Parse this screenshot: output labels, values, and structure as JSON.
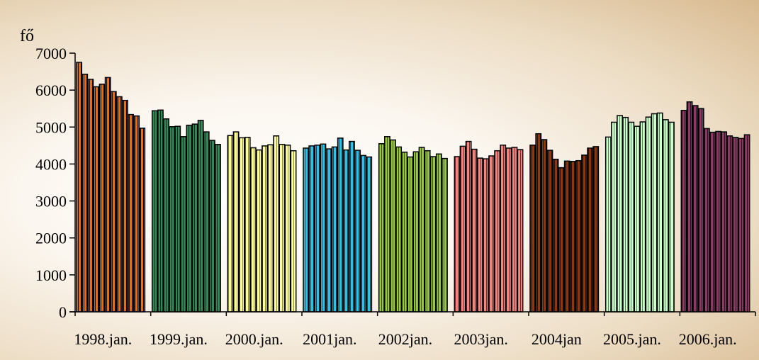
{
  "chart_data": {
    "type": "bar",
    "ylabel": "fő",
    "ylim": [
      0,
      7000
    ],
    "yticks": [
      0,
      1000,
      2000,
      3000,
      4000,
      5000,
      6000,
      7000
    ],
    "grid": false,
    "legend": "none",
    "year_labels": [
      "1998.jan.",
      "1999.jan.",
      "2000.jan.",
      "2001jan.",
      "2002jan.",
      "2003jan.",
      "2004jan",
      "2005.jan.",
      "2006.jan."
    ],
    "groups": [
      {
        "label": "1998.jan.",
        "color": "#ff6600",
        "stripe": "#1a0a00",
        "values": [
          6750,
          6430,
          6290,
          6090,
          6160,
          6340,
          5960,
          5820,
          5720,
          5340,
          5300,
          4970
        ]
      },
      {
        "label": "1999.jan.",
        "color": "#2e8b57",
        "stripe": "#0d2e1c",
        "values": [
          5440,
          5460,
          5220,
          5010,
          5020,
          4740,
          5050,
          5080,
          5180,
          4870,
          4640,
          4530
        ]
      },
      {
        "label": "2000.jan.",
        "color": "#ffff99",
        "stripe": "#8a8a3a",
        "values": [
          4770,
          4870,
          4710,
          4720,
          4440,
          4380,
          4490,
          4520,
          4760,
          4530,
          4510,
          4360
        ]
      },
      {
        "label": "2001jan.",
        "color": "#1ec8ef",
        "stripe": "#0a4a5a",
        "values": [
          4430,
          4490,
          4510,
          4540,
          4410,
          4460,
          4700,
          4380,
          4610,
          4370,
          4230,
          4190
        ]
      },
      {
        "label": "2002jan.",
        "color": "#99cc33",
        "stripe": "#3a5010",
        "values": [
          4550,
          4740,
          4650,
          4460,
          4320,
          4190,
          4330,
          4450,
          4360,
          4200,
          4270,
          4150
        ]
      },
      {
        "label": "2003jan.",
        "color": "#ff8080",
        "stripe": "#7a2a2a",
        "values": [
          4200,
          4480,
          4610,
          4400,
          4160,
          4140,
          4220,
          4360,
          4510,
          4430,
          4450,
          4390
        ]
      },
      {
        "label": "2004jan",
        "color": "#993300",
        "stripe": "#2a0e00",
        "values": [
          4510,
          4820,
          4660,
          4370,
          4130,
          3900,
          4080,
          4070,
          4090,
          4240,
          4430,
          4470
        ]
      },
      {
        "label": "2005.jan.",
        "color": "#ccffcc",
        "stripe": "#5a7a5a",
        "values": [
          4730,
          5130,
          5310,
          5260,
          5130,
          5020,
          5140,
          5270,
          5360,
          5380,
          5200,
          5130
        ]
      },
      {
        "label": "2006.jan.",
        "color": "#993366",
        "stripe": "#2e0f1e",
        "values": [
          5450,
          5680,
          5580,
          5500,
          4960,
          4860,
          4880,
          4870,
          4760,
          4720,
          4690,
          4790
        ]
      }
    ]
  }
}
